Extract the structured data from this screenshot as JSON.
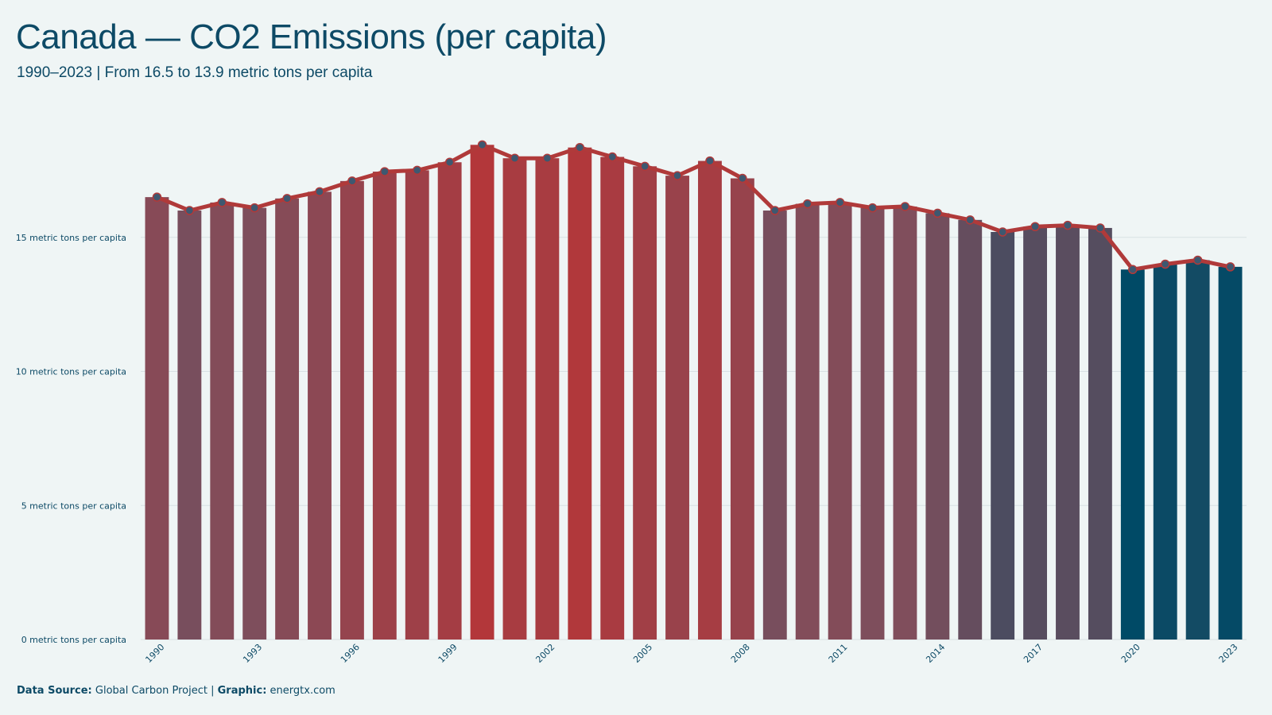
{
  "header": {
    "title": "Canada — CO2 Emissions (per capita)",
    "subtitle": "1990–2023 | From 16.5 to 13.9 metric tons per capita"
  },
  "footer": {
    "source_label": "Data Source:",
    "source_value": "Global Carbon Project",
    "separator": "|",
    "graphic_label": "Graphic:",
    "graphic_value": "energtx.com"
  },
  "colors": {
    "background": "#eff5f5",
    "text": "#0d4a66",
    "line": "#b03a3a",
    "marker_fill": "#3e5870",
    "high": "#b3373a",
    "mid": "#7f4e5c",
    "low": "#004a66",
    "grid": "#d8e1e4"
  },
  "chart_data": {
    "type": "bar",
    "x": [
      1990,
      1991,
      1992,
      1993,
      1994,
      1995,
      1996,
      1997,
      1998,
      1999,
      2000,
      2001,
      2002,
      2003,
      2004,
      2005,
      2006,
      2007,
      2008,
      2009,
      2010,
      2011,
      2012,
      2013,
      2014,
      2015,
      2016,
      2017,
      2018,
      2019,
      2020,
      2021,
      2022,
      2023
    ],
    "values": [
      16.5,
      16.0,
      16.3,
      16.1,
      16.45,
      16.7,
      17.1,
      17.45,
      17.5,
      17.8,
      18.45,
      17.95,
      17.95,
      18.35,
      18.0,
      17.65,
      17.3,
      17.85,
      17.2,
      16.0,
      16.25,
      16.3,
      16.1,
      16.15,
      15.9,
      15.65,
      15.2,
      15.4,
      15.45,
      15.35,
      13.8,
      14.0,
      14.15,
      13.9
    ],
    "xticks": [
      1990,
      1993,
      1996,
      1999,
      2002,
      2005,
      2008,
      2011,
      2014,
      2017,
      2020,
      2023
    ],
    "yticks": [
      0,
      5,
      10,
      15
    ],
    "ytick_suffix": " metric tons per capita",
    "ylim": [
      0,
      20
    ],
    "overlay": "line with markers",
    "grid": true
  }
}
